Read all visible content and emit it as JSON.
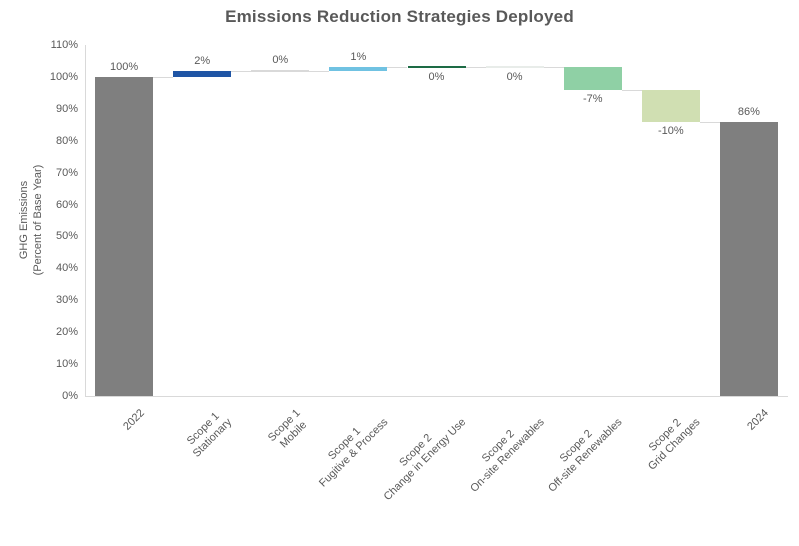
{
  "chart_data": {
    "type": "bar",
    "subtype": "waterfall",
    "title": "Emissions Reduction Strategies Deployed",
    "ylabel": "GHG Emissions (Percent of Base Year)",
    "ylabel_line1": "GHG Emissions",
    "ylabel_line2": "(Percent of Base Year)",
    "xlabel": "",
    "ylim": [
      0,
      110
    ],
    "grid": false,
    "legend": false,
    "ytick_values": [
      0,
      10,
      20,
      30,
      40,
      50,
      60,
      70,
      80,
      90,
      100,
      110
    ],
    "ytick_labels": [
      "0%",
      "10%",
      "20%",
      "30%",
      "40%",
      "50%",
      "60%",
      "70%",
      "80%",
      "90%",
      "100%",
      "110%"
    ],
    "categories": [
      {
        "label": "2022",
        "label_lines": [
          "2022"
        ],
        "kind": "total",
        "value": 100,
        "display": "100%",
        "label_pos": "above",
        "color": "#7F7F7F"
      },
      {
        "label": "Scope 1 Stationary",
        "label_lines": [
          "Scope 1",
          "Stationary"
        ],
        "kind": "delta",
        "value": 2,
        "display": "2%",
        "label_pos": "above",
        "color": "#1F55A5"
      },
      {
        "label": "Scope 1 Mobile",
        "label_lines": [
          "Scope 1",
          "Mobile"
        ],
        "kind": "delta",
        "value": 0,
        "display": "0%",
        "label_pos": "above",
        "color": "#D9D9D9"
      },
      {
        "label": "Scope 1 Fugitive & Process",
        "label_lines": [
          "Scope 1",
          "Fugitive & Process"
        ],
        "kind": "delta",
        "value": 1,
        "display": "1%",
        "label_pos": "above",
        "color": "#70C2E2"
      },
      {
        "label": "Scope 2 Change in Energy Use",
        "label_lines": [
          "Scope 2",
          "Change in Energy Use"
        ],
        "kind": "delta",
        "value": 0,
        "display": "0%",
        "label_pos": "below",
        "color": "#1D6B45"
      },
      {
        "label": "Scope 2 On-site Renewables",
        "label_lines": [
          "Scope 2",
          "On-site Renewables"
        ],
        "kind": "delta",
        "value": 0,
        "display": "0%",
        "label_pos": "below",
        "color": "#E8ECE9"
      },
      {
        "label": "Scope 2 Off-site Renewables",
        "label_lines": [
          "Scope 2",
          "Off-site Renewables"
        ],
        "kind": "delta",
        "value": -7,
        "display": "-7%",
        "label_pos": "below",
        "color": "#8FD0A5"
      },
      {
        "label": "Scope 2 Grid Changes",
        "label_lines": [
          "Scope 2",
          "Grid Changes"
        ],
        "kind": "delta",
        "value": -10,
        "display": "-10%",
        "label_pos": "below",
        "color": "#D0DFB2"
      },
      {
        "label": "2024",
        "label_lines": [
          "2024"
        ],
        "kind": "total",
        "value": 86,
        "display": "86%",
        "label_pos": "above",
        "color": "#7F7F7F"
      }
    ],
    "colors": {
      "title": "#595959",
      "text": "#595959",
      "connector": "#D9D9D9",
      "axis": "#D9D9D9",
      "background": "#FFFFFF"
    }
  }
}
